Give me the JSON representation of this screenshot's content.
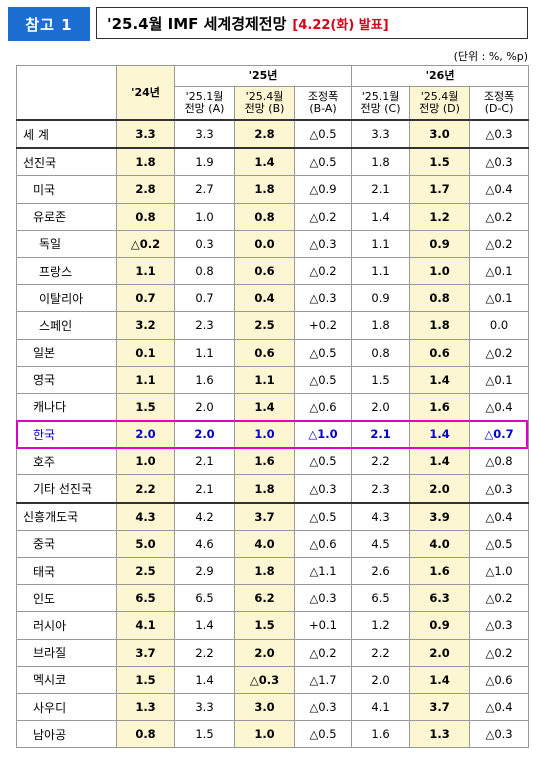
{
  "header": {
    "badge": "참고 1",
    "title": "'25.4월 IMF 세계경제전망",
    "date": "[4.22(화) 발표]"
  },
  "unit": "(단위 : %, %p)",
  "columns": {
    "y24": "'24년",
    "y25": "'25년",
    "y26": "'26년",
    "c25a": "'25.1월\n전망 (A)",
    "c25b": "'25.4월\n전망 (B)",
    "c25adj": "조정폭\n(B-A)",
    "c26c": "'25.1월\n전망 (C)",
    "c26d": "'25.4월\n전망 (D)",
    "c26adj": "조정폭\n(D-C)"
  },
  "rows": [
    {
      "label": "세 계",
      "indent": 0,
      "v24": "3.3",
      "a": "3.3",
      "b": "2.8",
      "ba": "△0.5",
      "c": "3.3",
      "d": "3.0",
      "dc": "△0.3"
    },
    {
      "label": "선진국",
      "indent": 0,
      "v24": "1.8",
      "a": "1.9",
      "b": "1.4",
      "ba": "△0.5",
      "c": "1.8",
      "d": "1.5",
      "dc": "△0.3"
    },
    {
      "label": "미국",
      "indent": 1,
      "v24": "2.8",
      "a": "2.7",
      "b": "1.8",
      "ba": "△0.9",
      "c": "2.1",
      "d": "1.7",
      "dc": "△0.4"
    },
    {
      "label": "유로존",
      "indent": 1,
      "v24": "0.8",
      "a": "1.0",
      "b": "0.8",
      "ba": "△0.2",
      "c": "1.4",
      "d": "1.2",
      "dc": "△0.2"
    },
    {
      "label": "독일",
      "indent": 2,
      "v24": "△0.2",
      "a": "0.3",
      "b": "0.0",
      "ba": "△0.3",
      "c": "1.1",
      "d": "0.9",
      "dc": "△0.2"
    },
    {
      "label": "프랑스",
      "indent": 2,
      "v24": "1.1",
      "a": "0.8",
      "b": "0.6",
      "ba": "△0.2",
      "c": "1.1",
      "d": "1.0",
      "dc": "△0.1"
    },
    {
      "label": "이탈리아",
      "indent": 2,
      "v24": "0.7",
      "a": "0.7",
      "b": "0.4",
      "ba": "△0.3",
      "c": "0.9",
      "d": "0.8",
      "dc": "△0.1"
    },
    {
      "label": "스페인",
      "indent": 2,
      "v24": "3.2",
      "a": "2.3",
      "b": "2.5",
      "ba": "+0.2",
      "c": "1.8",
      "d": "1.8",
      "dc": "0.0"
    },
    {
      "label": "일본",
      "indent": 1,
      "v24": "0.1",
      "a": "1.1",
      "b": "0.6",
      "ba": "△0.5",
      "c": "0.8",
      "d": "0.6",
      "dc": "△0.2"
    },
    {
      "label": "영국",
      "indent": 1,
      "v24": "1.1",
      "a": "1.6",
      "b": "1.1",
      "ba": "△0.5",
      "c": "1.5",
      "d": "1.4",
      "dc": "△0.1"
    },
    {
      "label": "캐나다",
      "indent": 1,
      "v24": "1.5",
      "a": "2.0",
      "b": "1.4",
      "ba": "△0.6",
      "c": "2.0",
      "d": "1.6",
      "dc": "△0.4"
    },
    {
      "label": "한국",
      "indent": 1,
      "v24": "2.0",
      "a": "2.0",
      "b": "1.0",
      "ba": "△1.0",
      "c": "2.1",
      "d": "1.4",
      "dc": "△0.7"
    },
    {
      "label": "호주",
      "indent": 1,
      "v24": "1.0",
      "a": "2.1",
      "b": "1.6",
      "ba": "△0.5",
      "c": "2.2",
      "d": "1.4",
      "dc": "△0.8"
    },
    {
      "label": "기타 선진국",
      "indent": 1,
      "v24": "2.2",
      "a": "2.1",
      "b": "1.8",
      "ba": "△0.3",
      "c": "2.3",
      "d": "2.0",
      "dc": "△0.3"
    },
    {
      "label": "신흥개도국",
      "indent": 0,
      "v24": "4.3",
      "a": "4.2",
      "b": "3.7",
      "ba": "△0.5",
      "c": "4.3",
      "d": "3.9",
      "dc": "△0.4"
    },
    {
      "label": "중국",
      "indent": 1,
      "v24": "5.0",
      "a": "4.6",
      "b": "4.0",
      "ba": "△0.6",
      "c": "4.5",
      "d": "4.0",
      "dc": "△0.5"
    },
    {
      "label": "태국",
      "indent": 1,
      "v24": "2.5",
      "a": "2.9",
      "b": "1.8",
      "ba": "△1.1",
      "c": "2.6",
      "d": "1.6",
      "dc": "△1.0"
    },
    {
      "label": "인도",
      "indent": 1,
      "v24": "6.5",
      "a": "6.5",
      "b": "6.2",
      "ba": "△0.3",
      "c": "6.5",
      "d": "6.3",
      "dc": "△0.2"
    },
    {
      "label": "러시아",
      "indent": 1,
      "v24": "4.1",
      "a": "1.4",
      "b": "1.5",
      "ba": "+0.1",
      "c": "1.2",
      "d": "0.9",
      "dc": "△0.3"
    },
    {
      "label": "브라질",
      "indent": 1,
      "v24": "3.7",
      "a": "2.2",
      "b": "2.0",
      "ba": "△0.2",
      "c": "2.2",
      "d": "2.0",
      "dc": "△0.2"
    },
    {
      "label": "멕시코",
      "indent": 1,
      "v24": "1.5",
      "a": "1.4",
      "b": "△0.3",
      "ba": "△1.7",
      "c": "2.0",
      "d": "1.4",
      "dc": "△0.6"
    },
    {
      "label": "사우디",
      "indent": 1,
      "v24": "1.3",
      "a": "3.3",
      "b": "3.0",
      "ba": "△0.3",
      "c": "4.1",
      "d": "3.7",
      "dc": "△0.4"
    },
    {
      "label": "남아공",
      "indent": 1,
      "v24": "0.8",
      "a": "1.5",
      "b": "1.0",
      "ba": "△0.5",
      "c": "1.6",
      "d": "1.3",
      "dc": "△0.3"
    }
  ]
}
